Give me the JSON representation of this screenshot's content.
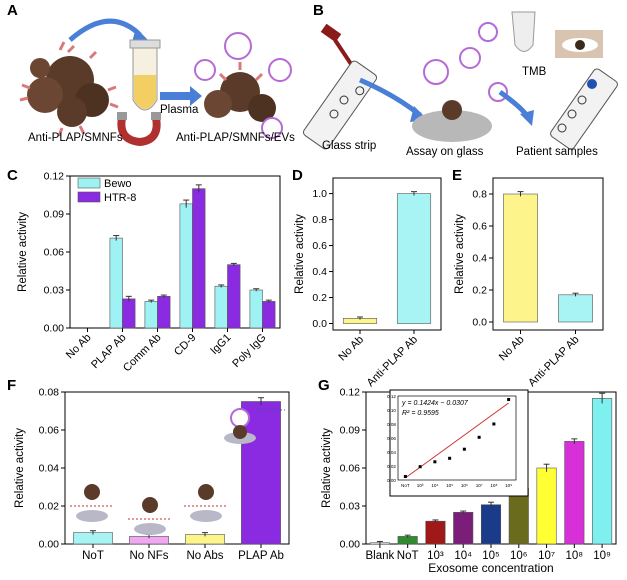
{
  "panel_labels": [
    "A",
    "B",
    "C",
    "D",
    "E",
    "F",
    "G"
  ],
  "panel_A": {
    "caption_left": "Anti-PLAP/SMNFs",
    "caption_right": "Anti-PLAP/SMNFs/EVs",
    "arrow_label": "Plasma"
  },
  "panel_B": {
    "caption_strip": "Glass strip",
    "caption_assay": "Assay on glass",
    "caption_patient": "Patient samples",
    "tmb_label": "TMB"
  },
  "colors": {
    "bewo": "#9ff2f3",
    "htr8": "#8a2be2",
    "yellow": "#fdf58c",
    "cyan": "#a8f3f3",
    "nanoflower": "#5a3b2a",
    "arrow": "#4a7fd8"
  },
  "chart_data": [
    {
      "panel": "C",
      "type": "bar",
      "categories": [
        "No Ab",
        "PLAP Ab",
        "Comm Ab",
        "CD-9",
        "IgG1",
        "Poly IgG"
      ],
      "series": [
        {
          "name": "Bewo",
          "values": [
            0,
            0.071,
            0.021,
            0.098,
            0.033,
            0.03
          ],
          "errors": [
            0,
            0.002,
            0.001,
            0.003,
            0.001,
            0.001
          ],
          "color": "#9ff2f3"
        },
        {
          "name": "HTR-8",
          "values": [
            0,
            0.023,
            0.025,
            0.11,
            0.05,
            0.021
          ],
          "errors": [
            0,
            0.002,
            0.001,
            0.003,
            0.001,
            0.001
          ],
          "color": "#8a2be2"
        }
      ],
      "ylabel": "Relative activity",
      "ylim": [
        0,
        0.12
      ],
      "yticks": [
        "0.00",
        "0.03",
        "0.06",
        "0.09",
        "0.12"
      ],
      "ytick_values": [
        0,
        0.03,
        0.06,
        0.09,
        0.12
      ],
      "legend": "top-left"
    },
    {
      "panel": "D",
      "type": "bar",
      "categories": [
        "No Ab",
        "Anti-PLAP Ab"
      ],
      "values": [
        0.04,
        1.0
      ],
      "errors": [
        0.01,
        0.015
      ],
      "colors": [
        "#fdf58c",
        "#a8f3f3"
      ],
      "ylabel": "Relative activity",
      "ylim": [
        -0.05,
        1.12
      ],
      "yticks": [
        "0.0",
        "0.2",
        "0.4",
        "0.6",
        "0.8",
        "1.0"
      ],
      "ytick_values": [
        0,
        0.2,
        0.4,
        0.6,
        0.8,
        1.0
      ]
    },
    {
      "panel": "E",
      "type": "bar",
      "categories": [
        "No Ab",
        "Anti-PLAP Ab"
      ],
      "values": [
        0.8,
        0.17
      ],
      "errors": [
        0.015,
        0.01
      ],
      "colors": [
        "#fdf58c",
        "#a8f3f3"
      ],
      "ylabel": "Relative activity",
      "ylim": [
        -0.05,
        0.9
      ],
      "yticks": [
        "0.0",
        "0.2",
        "0.4",
        "0.6",
        "0.8"
      ],
      "ytick_values": [
        0,
        0.2,
        0.4,
        0.6,
        0.8
      ]
    },
    {
      "panel": "F",
      "type": "bar",
      "categories": [
        "NoT",
        "No NFs",
        "No Abs",
        "PLAP Ab"
      ],
      "values": [
        0.006,
        0.004,
        0.005,
        0.075
      ],
      "errors": [
        0.001,
        0.001,
        0.001,
        0.002
      ],
      "colors": [
        "#a8f3f3",
        "#f0a8f0",
        "#fdf58c",
        "#8a2be2"
      ],
      "ylabel": "Relative activity",
      "ylim": [
        0,
        0.08
      ],
      "yticks": [
        "0.00",
        "0.02",
        "0.04",
        "0.06",
        "0.08"
      ],
      "ytick_values": [
        0,
        0.02,
        0.04,
        0.06,
        0.08
      ]
    },
    {
      "panel": "G",
      "type": "bar",
      "categories": [
        "Blank",
        "NoT",
        "10³",
        "10⁴",
        "10⁵",
        "10⁶",
        "10⁷",
        "10⁸",
        "10⁹"
      ],
      "values": [
        0.001,
        0.006,
        0.018,
        0.025,
        0.031,
        0.044,
        0.06,
        0.081,
        0.115
      ],
      "errors": [
        0.001,
        0.001,
        0.001,
        0.001,
        0.002,
        0.001,
        0.003,
        0.002,
        0.004
      ],
      "colors": [
        "#ffffff",
        "#2e8b2e",
        "#a01818",
        "#7a1e7a",
        "#1a3a8a",
        "#6b6b1e",
        "#ffff33",
        "#d830d8",
        "#7ff0f0"
      ],
      "xlabel": "Exosome concentration",
      "ylabel": "Relative activity",
      "ylim": [
        0,
        0.12
      ],
      "yticks": [
        "0.00",
        "0.03",
        "0.06",
        "0.09",
        "0.12"
      ],
      "ytick_values": [
        0,
        0.03,
        0.06,
        0.09,
        0.12
      ],
      "inset": {
        "type": "scatter",
        "equation": "y = 0.1424x − 0.0307",
        "r2": "R² = 0.9595",
        "xticks": [
          "NoT",
          "10³",
          "10⁴",
          "10⁵",
          "10⁶",
          "10⁷",
          "10⁸",
          "10⁹"
        ],
        "x": [
          1,
          2,
          3,
          4,
          5,
          6,
          7,
          8
        ],
        "y": [
          0.005,
          0.019,
          0.026,
          0.031,
          0.044,
          0.061,
          0.08,
          0.115
        ],
        "yticks": [
          "0.00",
          "0.02",
          "0.04",
          "0.06",
          "0.08",
          "0.10",
          "0.12"
        ],
        "ytick_values": [
          0,
          0.02,
          0.04,
          0.06,
          0.08,
          0.1,
          0.12
        ],
        "ylim": [
          0,
          0.12
        ],
        "fit_line_color": "#d03030"
      }
    }
  ]
}
